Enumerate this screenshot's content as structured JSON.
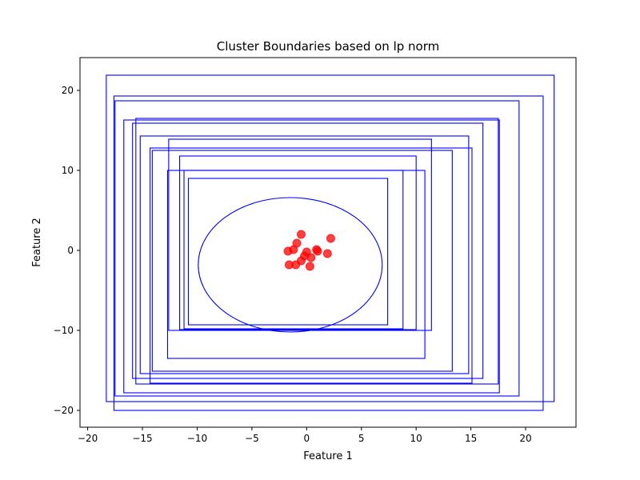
{
  "chart_data": {
    "type": "scatter",
    "title": "Cluster Boundaries based on lp norm",
    "xlabel": "Feature 1",
    "ylabel": "Feature 2",
    "xlim": [
      -20.7,
      24.6
    ],
    "ylim": [
      -22.1,
      24.1
    ],
    "xticks": [
      -20,
      -15,
      -10,
      -5,
      0,
      5,
      10,
      15,
      20
    ],
    "yticks": [
      -20,
      -10,
      0,
      10,
      20
    ],
    "xtick_labels": [
      "−20",
      "−15",
      "−10",
      "−5",
      "0",
      "5",
      "10",
      "15",
      "20"
    ],
    "ytick_labels": [
      "−20",
      "−10",
      "0",
      "10",
      "20"
    ],
    "grid": false,
    "colors": {
      "points": "#ff0000",
      "boundaries": "#0000ff"
    },
    "points": [
      {
        "x": -0.5,
        "y": 2.0
      },
      {
        "x": -0.9,
        "y": 0.9
      },
      {
        "x": -1.7,
        "y": -0.1
      },
      {
        "x": -1.2,
        "y": 0.1
      },
      {
        "x": 0.0,
        "y": -0.2
      },
      {
        "x": 0.9,
        "y": 0.1
      },
      {
        "x": 1.0,
        "y": -0.1
      },
      {
        "x": 2.2,
        "y": 1.5
      },
      {
        "x": 1.9,
        "y": -0.4
      },
      {
        "x": -0.2,
        "y": -0.7
      },
      {
        "x": 0.4,
        "y": -0.9
      },
      {
        "x": -0.5,
        "y": -1.3
      },
      {
        "x": -1.6,
        "y": -1.8
      },
      {
        "x": -1.0,
        "y": -1.8
      },
      {
        "x": 0.3,
        "y": -2.0
      }
    ],
    "ellipses": [
      {
        "cx": -1.5,
        "cy": -1.8,
        "rx": 8.4,
        "ry": 8.4
      }
    ],
    "rectangles": [
      {
        "x0": -18.3,
        "x1": 22.6,
        "y0": -18.9,
        "y1": 21.9
      },
      {
        "x0": -17.6,
        "x1": 21.6,
        "y0": -20.0,
        "y1": 19.3
      },
      {
        "x0": -17.5,
        "x1": 19.4,
        "y0": -18.2,
        "y1": 18.7
      },
      {
        "x0": -16.7,
        "x1": 17.6,
        "y0": -17.8,
        "y1": 16.3
      },
      {
        "x0": -15.6,
        "x1": 17.5,
        "y0": -16.7,
        "y1": 16.5
      },
      {
        "x0": -15.9,
        "x1": 16.1,
        "y0": -16.0,
        "y1": 15.9
      },
      {
        "x0": -15.2,
        "x1": 14.8,
        "y0": -15.4,
        "y1": 14.3
      },
      {
        "x0": -14.3,
        "x1": 15.1,
        "y0": -16.6,
        "y1": 12.8
      },
      {
        "x0": -14.1,
        "x1": 13.3,
        "y0": -15.1,
        "y1": 12.5
      },
      {
        "x0": -12.6,
        "x1": 11.4,
        "y0": -10.0,
        "y1": 13.9
      },
      {
        "x0": -11.6,
        "x1": 10.0,
        "y0": -9.9,
        "y1": 11.8
      },
      {
        "x0": -12.7,
        "x1": 10.8,
        "y0": -13.5,
        "y1": 10.0
      },
      {
        "x0": -11.2,
        "x1": 8.8,
        "y0": -9.8,
        "y1": 10.0
      },
      {
        "x0": -10.8,
        "x1": 7.4,
        "y0": -9.3,
        "y1": 9.0
      }
    ]
  }
}
